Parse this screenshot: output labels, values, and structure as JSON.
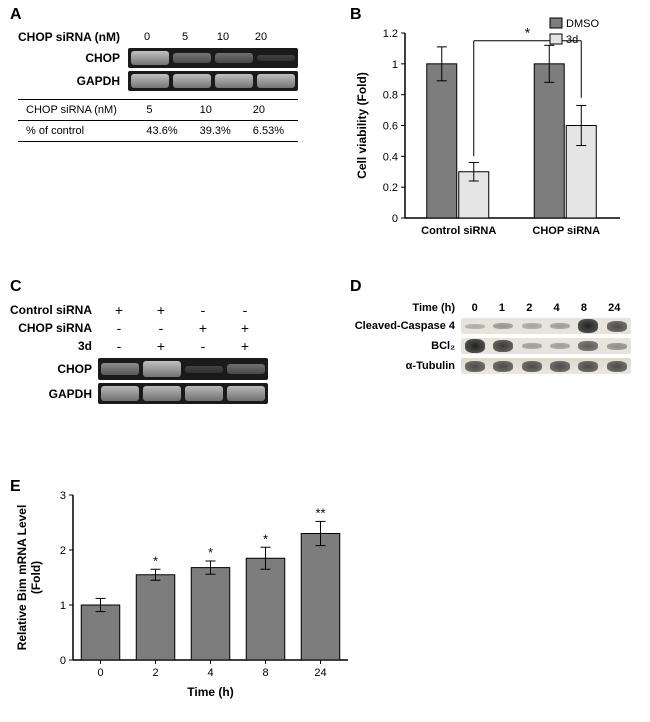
{
  "panelA": {
    "label": "A",
    "header": "CHOP siRNA (nM)",
    "doses": [
      "0",
      "5",
      "10",
      "20"
    ],
    "row1": "CHOP",
    "row2": "GAPDH",
    "chop_intensity": [
      0.95,
      0.45,
      0.4,
      0.1
    ],
    "gapdh_intensity": [
      0.95,
      0.95,
      0.95,
      0.95
    ],
    "table": {
      "row1_label": "CHOP siRNA (nM)",
      "row1_vals": [
        "5",
        "10",
        "20"
      ],
      "row2_label": "% of control",
      "row2_vals": [
        "43.6%",
        "39.3%",
        "6.53%"
      ]
    }
  },
  "panelB": {
    "label": "B",
    "type": "bar",
    "ylabel": "Cell viability (Fold)",
    "groups": [
      "Control siRNA",
      "CHOP siRNA"
    ],
    "legend": [
      {
        "name": "DMSO",
        "color": "#7d7d7d"
      },
      {
        "name": "3d",
        "color": "#e5e5e5"
      }
    ],
    "values": {
      "Control siRNA": {
        "DMSO": 1.0,
        "3d": 0.3
      },
      "CHOP siRNA": {
        "DMSO": 1.0,
        "3d": 0.6
      }
    },
    "errors": {
      "Control siRNA": {
        "DMSO": 0.11,
        "3d": 0.06
      },
      "CHOP siRNA": {
        "DMSO": 0.12,
        "3d": 0.13
      }
    },
    "ylim": [
      0,
      1.2
    ],
    "ytick_step": 0.2,
    "sig_marker": "*",
    "bar_border": "#000000",
    "axis_color": "#000000",
    "background": "#ffffff"
  },
  "panelC": {
    "label": "C",
    "rows": [
      {
        "label": "Control siRNA",
        "marks": [
          "+",
          "+",
          "-",
          "-"
        ]
      },
      {
        "label": "CHOP siRNA",
        "marks": [
          "-",
          "-",
          "+",
          "+"
        ]
      },
      {
        "label": "3d",
        "marks": [
          "-",
          "+",
          "-",
          "+"
        ]
      }
    ],
    "gels": [
      {
        "name": "CHOP",
        "intensity": [
          0.6,
          0.95,
          0.1,
          0.4
        ]
      },
      {
        "name": "GAPDH",
        "intensity": [
          0.9,
          0.9,
          0.9,
          0.9
        ]
      }
    ]
  },
  "panelD": {
    "label": "D",
    "time_label": "Time (h)",
    "times": [
      "0",
      "1",
      "2",
      "4",
      "8",
      "24"
    ],
    "blots": [
      {
        "name": "Cleaved-Caspase 4",
        "intensity": [
          0.1,
          0.25,
          0.15,
          0.2,
          0.95,
          0.7
        ]
      },
      {
        "name": "BCl₂",
        "sub": "2",
        "intensity": [
          0.95,
          0.8,
          0.2,
          0.2,
          0.6,
          0.3
        ]
      },
      {
        "name": "α-Tubulin",
        "intensity": [
          0.7,
          0.7,
          0.7,
          0.7,
          0.7,
          0.7
        ],
        "wavy": true
      }
    ]
  },
  "panelE": {
    "label": "E",
    "type": "bar",
    "ylabel": "Relative Bim mRNA Level\n(Fold)",
    "xlabel": "Time (h)",
    "categories": [
      "0",
      "2",
      "4",
      "8",
      "24"
    ],
    "values": [
      1.0,
      1.55,
      1.68,
      1.85,
      2.3
    ],
    "errors": [
      0.12,
      0.1,
      0.12,
      0.2,
      0.22
    ],
    "sig": [
      "",
      "*",
      "*",
      "*",
      "**"
    ],
    "ylim": [
      0,
      3
    ],
    "ytick_step": 1,
    "bar_color": "#7d7d7d",
    "bar_border": "#000000",
    "axis_color": "#000000"
  }
}
